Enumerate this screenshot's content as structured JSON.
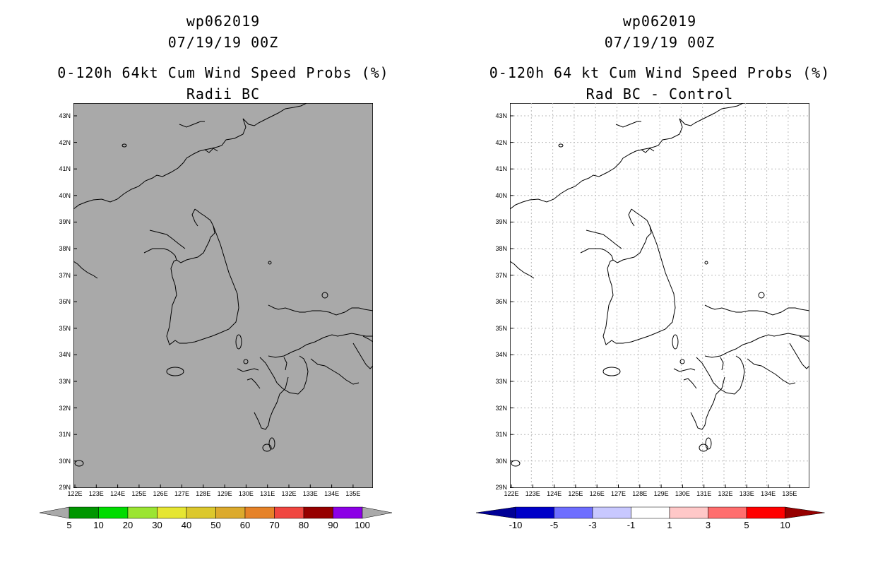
{
  "left": {
    "title1": "wp062019",
    "title2": "07/19/19 00Z",
    "title3": "0-120h 64kt Cum Wind Speed Probs (%)",
    "title4": "Radii BC",
    "background": "#a9a9a9",
    "colorbar": {
      "colors": [
        "#009600",
        "#00dc00",
        "#9be532",
        "#e6e632",
        "#dcc82d",
        "#dcaa2d",
        "#e68228",
        "#f04640",
        "#960000",
        "#8c00e6"
      ],
      "end_color": "#a9a9a9",
      "labels": [
        "5",
        "10",
        "20",
        "30",
        "40",
        "50",
        "60",
        "70",
        "80",
        "90",
        "100"
      ]
    }
  },
  "right": {
    "title1": "wp062019",
    "title2": "07/19/19 00Z",
    "title3": "0-120h 64 kt Cum Wind Speed Probs (%)",
    "title4": "Rad BC - Control",
    "background": "#ffffff",
    "shade_color": "#c8c8ff",
    "colorbar": {
      "colors": [
        "#0000c8",
        "#6e6eff",
        "#c8c8ff",
        "#ffffff",
        "#ffc8c8",
        "#ff6e6e",
        "#ff0000"
      ],
      "low_end": "#000096",
      "high_end": "#960000",
      "labels": [
        "-10",
        "-5",
        "-3",
        "-1",
        "1",
        "3",
        "5",
        "10"
      ]
    }
  },
  "axes": {
    "lat_labels": [
      "43N",
      "42N",
      "41N",
      "40N",
      "39N",
      "38N",
      "37N",
      "36N",
      "35N",
      "34N",
      "33N",
      "32N",
      "31N",
      "30N",
      "29N"
    ],
    "lon_labels": [
      "122E",
      "123E",
      "124E",
      "125E",
      "126E",
      "127E",
      "128E",
      "129E",
      "130E",
      "131E",
      "132E",
      "133E",
      "134E",
      "135E"
    ]
  }
}
